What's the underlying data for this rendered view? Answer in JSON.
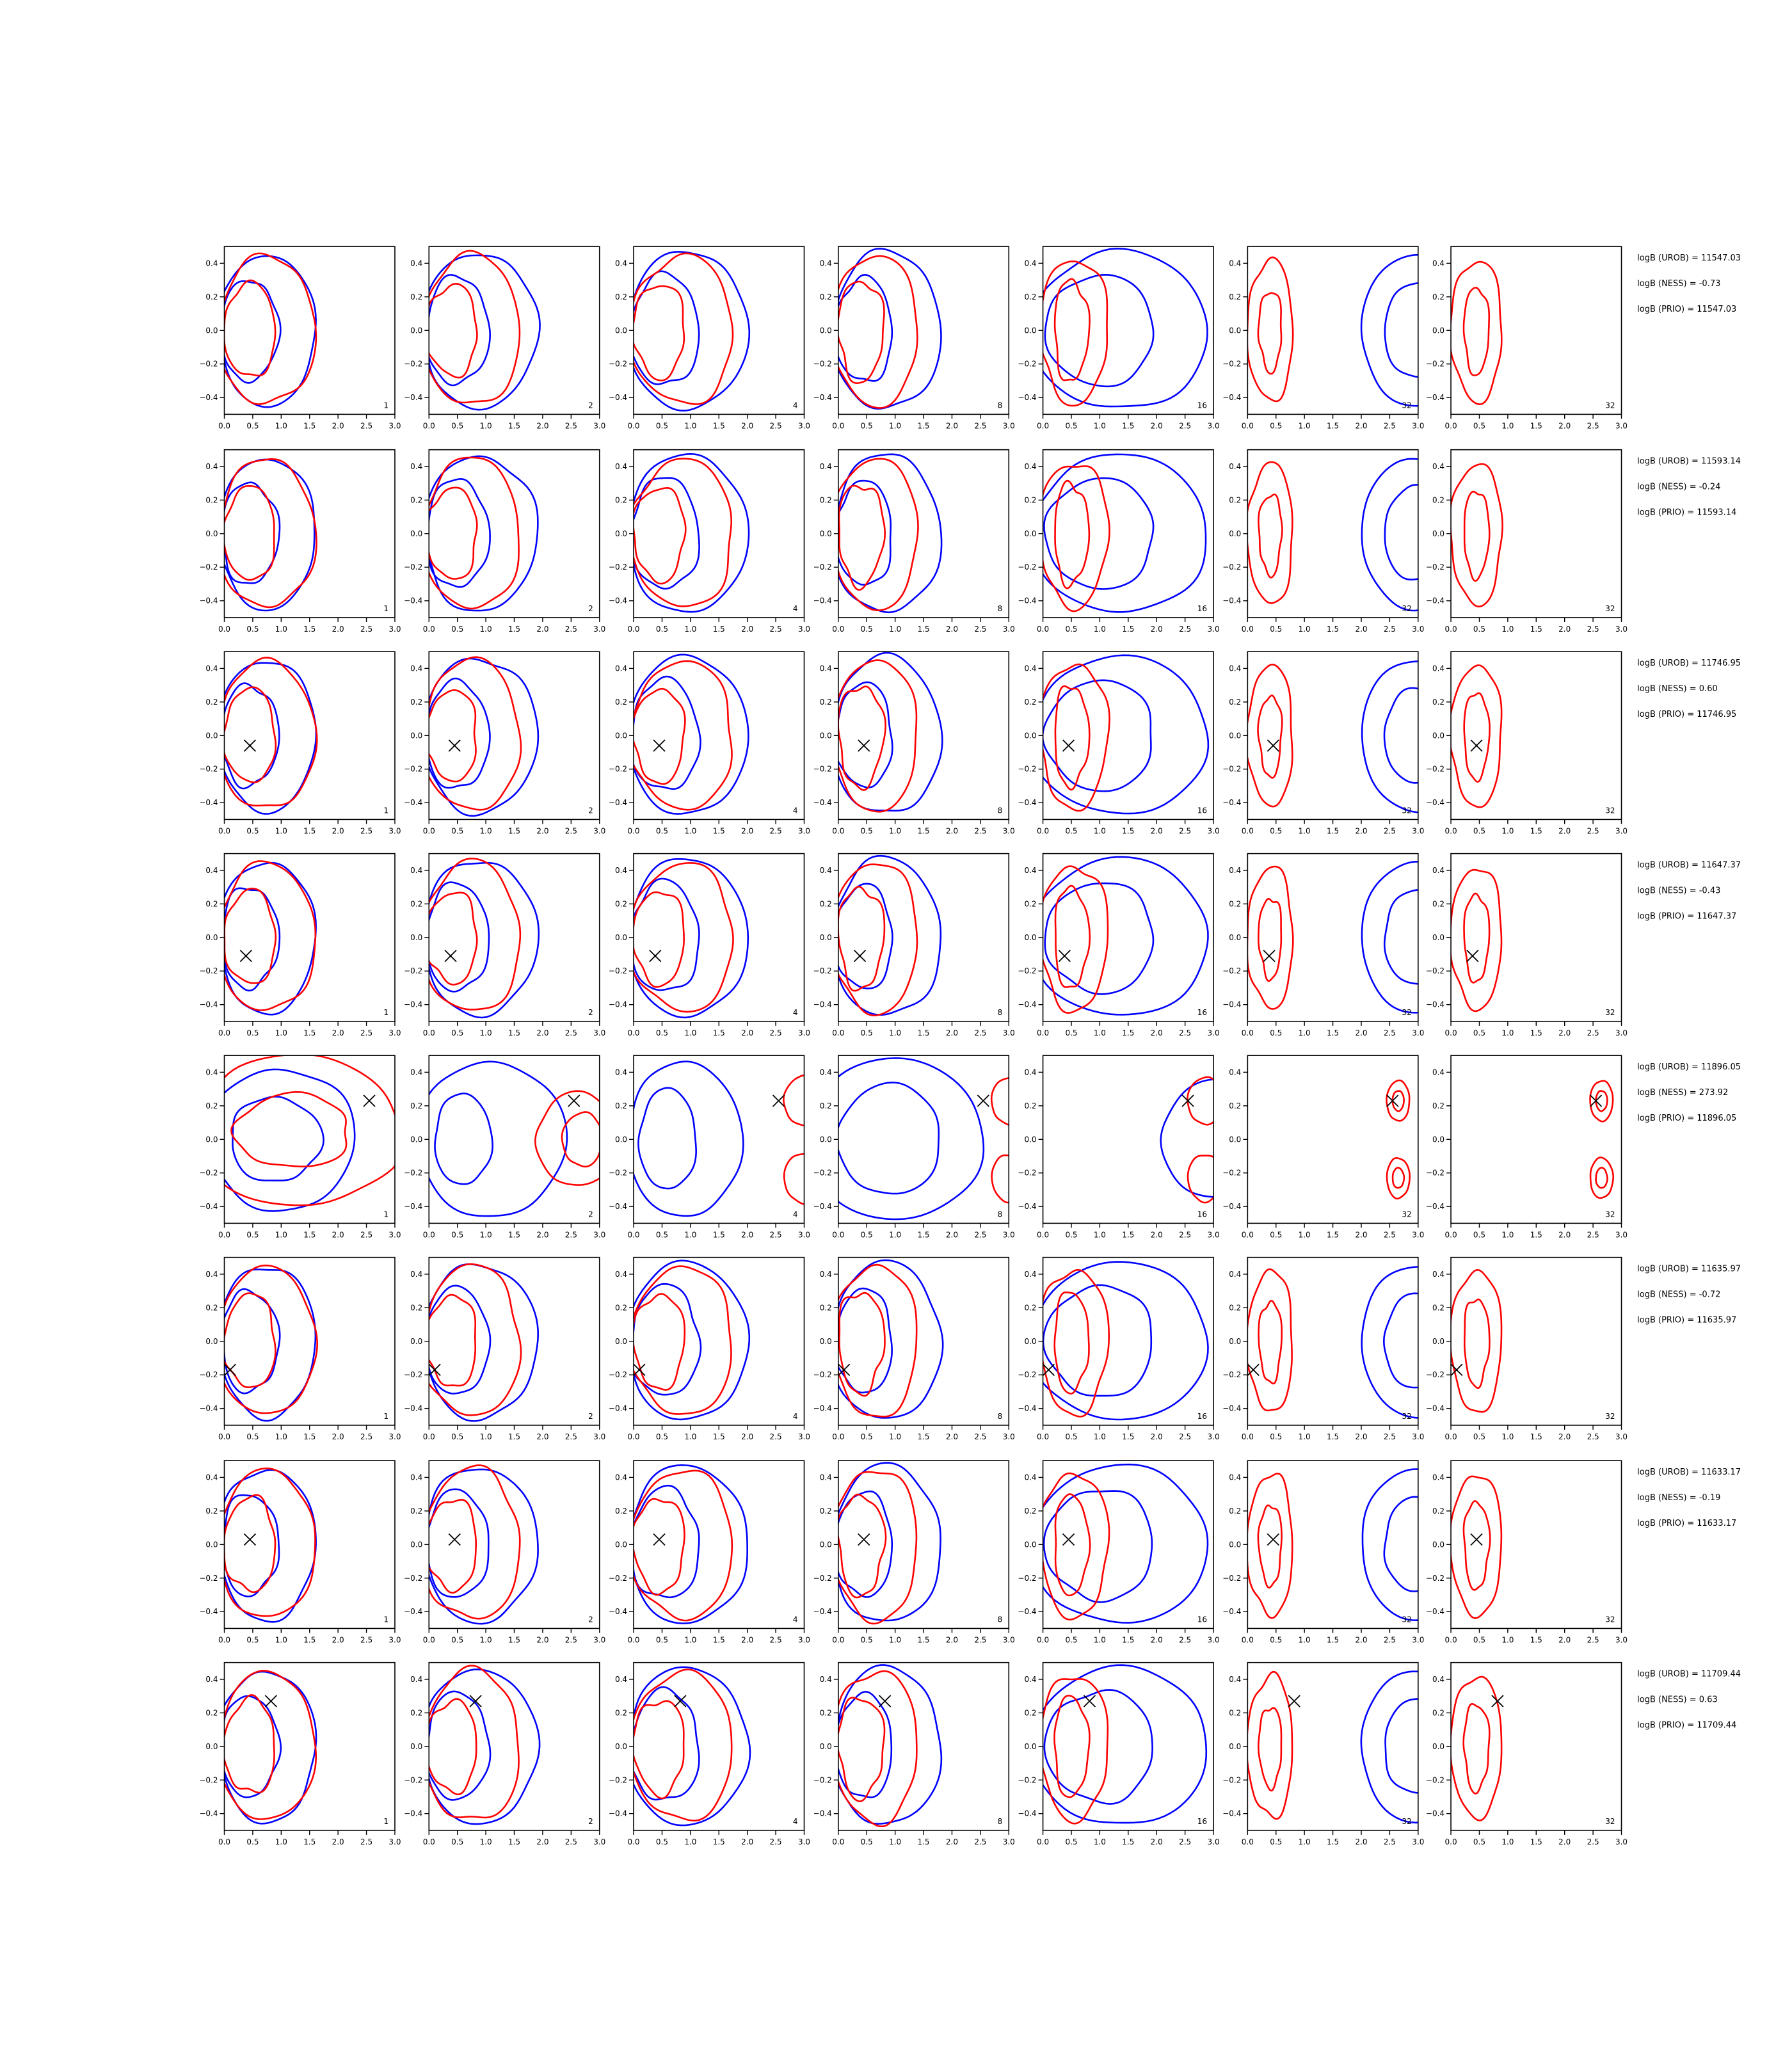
{
  "chart_data": {
    "type": "contour",
    "layout": {
      "rows": 8,
      "cols": 7
    },
    "xlim": [
      0.0,
      3.0
    ],
    "ylim": [
      -0.5,
      0.5
    ],
    "xticks": [
      "0.0",
      "0.5",
      "1.0",
      "1.5",
      "2.0",
      "2.5",
      "3.0"
    ],
    "yticks": [
      "0.4",
      "0.2",
      "0.0",
      "−0.2",
      "−0.4"
    ],
    "ytick_values": [
      0.4,
      0.2,
      0.0,
      -0.2,
      -0.4
    ],
    "xtick_values": [
      0.0,
      0.5,
      1.0,
      1.5,
      2.0,
      2.5,
      3.0
    ],
    "column_labels": [
      "1",
      "2",
      "4",
      "8",
      "16",
      "32",
      "32"
    ],
    "series_colors": {
      "contour_a": "#0000ff",
      "contour_b": "#ff0000",
      "marker": "#000000"
    },
    "rows": [
      {
        "marker": null,
        "annotations": [
          "logB (UROB) = 11547.03",
          "logB (NESS) = -0.73",
          "logB (PRIO) = 11547.03"
        ]
      },
      {
        "marker": null,
        "annotations": [
          "logB (UROB) = 11593.14",
          "logB (NESS) = -0.24",
          "logB (PRIO) = 11593.14"
        ]
      },
      {
        "marker": [
          0.45,
          -0.06
        ],
        "annotations": [
          "logB (UROB) = 11746.95",
          "logB (NESS) = 0.60",
          "logB (PRIO) = 11746.95"
        ]
      },
      {
        "marker": [
          0.38,
          -0.11
        ],
        "annotations": [
          "logB (UROB) = 11647.37",
          "logB (NESS) = -0.43",
          "logB (PRIO) = 11647.37"
        ]
      },
      {
        "marker": [
          2.55,
          0.23
        ],
        "annotations": [
          "logB (UROB) = 11896.05",
          "logB (NESS) = 273.92",
          "logB (PRIO) = 11896.05"
        ]
      },
      {
        "marker": [
          0.1,
          -0.17
        ],
        "annotations": [
          "logB (UROB) = 11635.97",
          "logB (NESS) = -0.72",
          "logB (PRIO) = 11635.97"
        ]
      },
      {
        "marker": [
          0.45,
          0.03
        ],
        "annotations": [
          "logB (UROB) = 11633.17",
          "logB (NESS) = -0.19",
          "logB (PRIO) = 11633.17"
        ]
      },
      {
        "marker": [
          0.82,
          0.27
        ],
        "annotations": [
          "logB (UROB) = 11709.44",
          "logB (NESS) = 0.63",
          "logB (PRIO) = 11709.44"
        ]
      }
    ]
  }
}
